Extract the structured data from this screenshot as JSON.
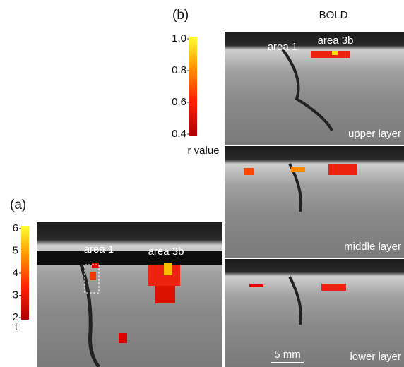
{
  "panel_a": {
    "label": "(a)",
    "colorbar": {
      "title": "t",
      "lim": [
        2,
        6
      ],
      "ticks": [
        2,
        3,
        4,
        5,
        6
      ]
    },
    "annotations": [
      "area 1",
      "area 3b"
    ]
  },
  "panel_b": {
    "label": "(b)",
    "title": "BOLD",
    "colorbar": {
      "title": "r value",
      "lim": [
        0.4,
        1.0
      ],
      "ticks": [
        {
          "value": 1.0,
          "label": "1.0"
        },
        0.8,
        0.6,
        0.4
      ]
    },
    "annotations": [
      "area 1",
      "area 3b"
    ],
    "layers": [
      "upper layer",
      "middle layer",
      "lower layer"
    ],
    "scale_bar": "5 mm"
  }
}
